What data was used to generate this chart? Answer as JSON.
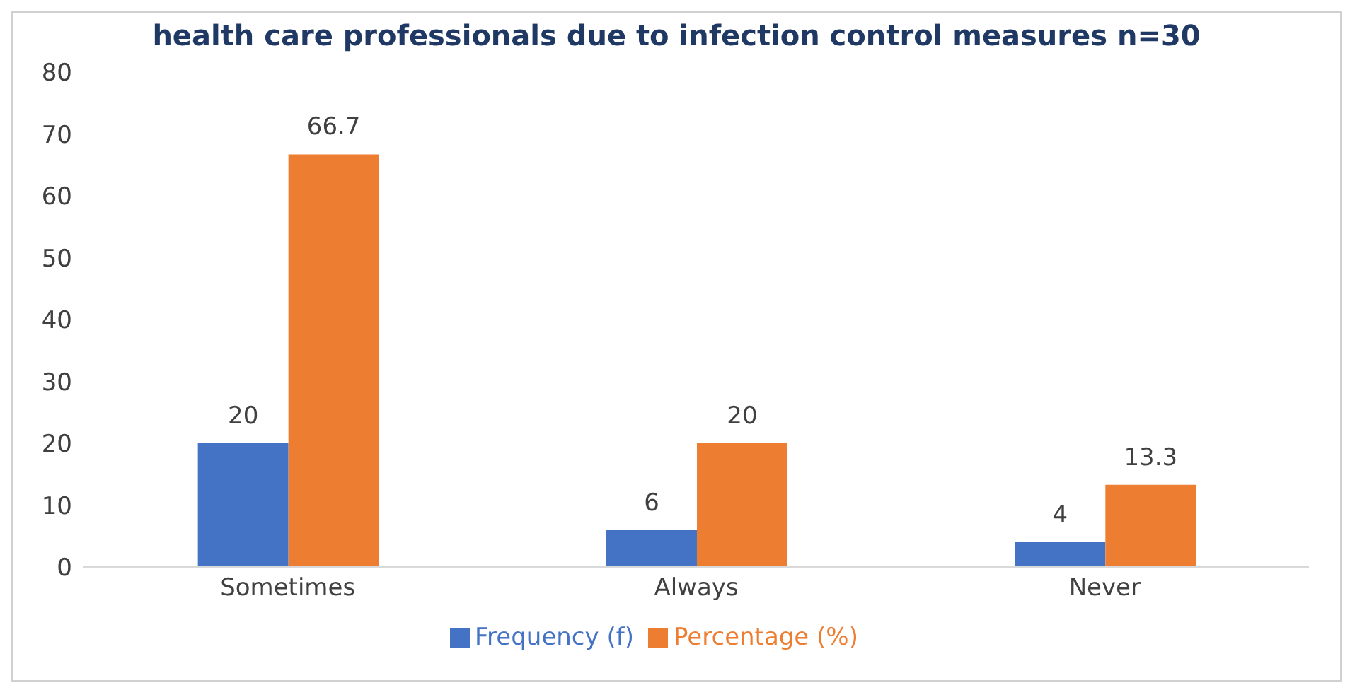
{
  "chart_data": {
    "type": "bar",
    "title": "health care professionals due to infection control measures n=30",
    "categories": [
      "Sometimes",
      "Always",
      "Never"
    ],
    "series": [
      {
        "name": "Frequency (f)",
        "color": "#4472c4",
        "values": [
          20,
          6,
          4
        ]
      },
      {
        "name": "Percentage (%)",
        "color": "#ed7d31",
        "values": [
          66.7,
          20,
          13.3
        ]
      }
    ],
    "ylim": [
      0,
      80
    ],
    "yticks": [
      0,
      10,
      20,
      30,
      40,
      50,
      60,
      70,
      80
    ],
    "data_labels": true,
    "legend": "bottom",
    "grid": false
  }
}
